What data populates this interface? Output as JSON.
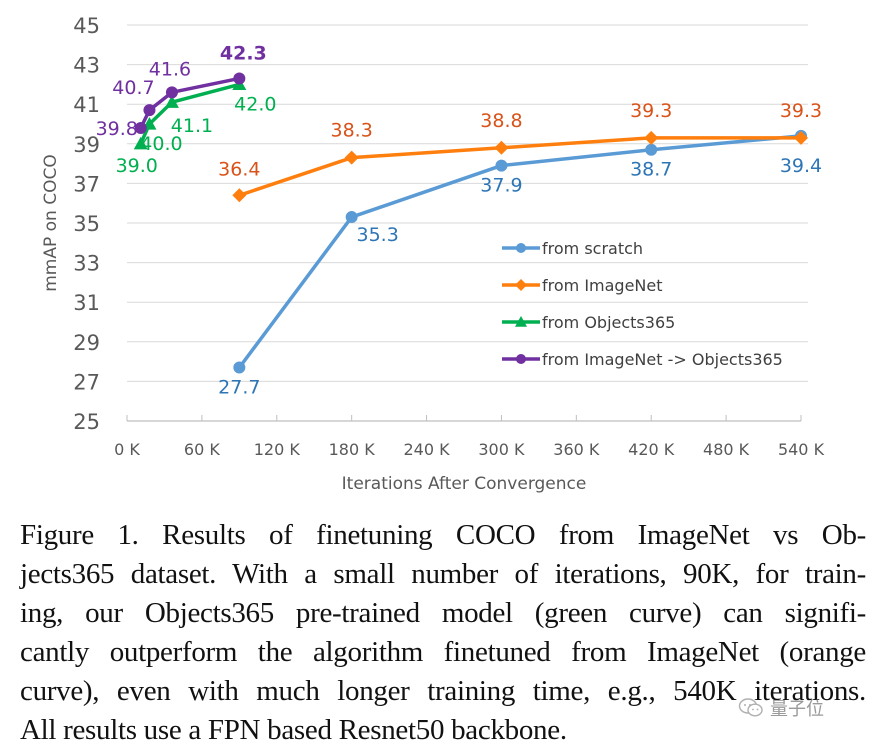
{
  "chart_data": {
    "type": "line",
    "title": "",
    "xlabel": "Iterations After Convergence",
    "ylabel": "mmAP on COCO",
    "xlim": [
      0,
      540
    ],
    "ylim": [
      25,
      45
    ],
    "x_unit": "K iterations",
    "grid": "horizontal",
    "legend_position": "center-right",
    "yticks": [
      "25",
      "27",
      "29",
      "31",
      "33",
      "35",
      "37",
      "39",
      "41",
      "43",
      "45"
    ],
    "yticks_values": [
      25,
      27,
      29,
      31,
      33,
      35,
      37,
      39,
      41,
      43,
      45
    ],
    "xticks": [
      "0 K",
      "60 K",
      "120 K",
      "180 K",
      "240 K",
      "300 K",
      "360 K",
      "420 K",
      "480 K",
      "540 K"
    ],
    "xticks_values": [
      0,
      60,
      120,
      180,
      240,
      300,
      360,
      420,
      480,
      540
    ],
    "series": [
      {
        "name": "from scratch",
        "color": "#5B9BD5",
        "label_color": "#2E75B6",
        "marker": "circle",
        "x": [
          90,
          180,
          300,
          420,
          540
        ],
        "y": [
          27.7,
          35.3,
          37.9,
          38.7,
          39.4
        ],
        "labels": [
          "27.7",
          "35.3",
          "37.9",
          "38.7",
          "39.4"
        ]
      },
      {
        "name": "from ImageNet",
        "color": "#FF7F0E",
        "label_color": "#D95319",
        "marker": "diamond",
        "x": [
          90,
          180,
          300,
          420,
          540
        ],
        "y": [
          36.4,
          38.3,
          38.8,
          39.3,
          39.3
        ],
        "labels": [
          "36.4",
          "38.3",
          "38.8",
          "39.3",
          "39.3"
        ]
      },
      {
        "name": "from Objects365",
        "color": "#00B050",
        "label_color": "#00B050",
        "marker": "triangle",
        "x": [
          11,
          18,
          36,
          90
        ],
        "y": [
          39.0,
          40.0,
          41.1,
          42.0
        ],
        "labels": [
          "39.0",
          "40.0",
          "41.1",
          "42.0"
        ]
      },
      {
        "name": "from ImageNet -> Objects365",
        "color": "#7030A0",
        "label_color": "#7030A0",
        "marker": "circle",
        "x": [
          11,
          18,
          36,
          90
        ],
        "y": [
          39.8,
          40.7,
          41.6,
          42.3
        ],
        "labels": [
          "39.8",
          "40.7",
          "41.6",
          "42.3"
        ]
      }
    ]
  },
  "caption": {
    "lines": [
      "Figure 1. Results of finetuning COCO from ImageNet vs Ob-",
      "jects365 dataset. With a small number of iterations, 90K, for train-",
      "ing, our Objects365 pre-trained model (green curve) can signifi-",
      "cantly outperform the algorithm finetuned from ImageNet (orange",
      "curve), even with much longer training time, e.g., 540K iterations.",
      "All results use a FPN based Resnet50 backbone."
    ]
  },
  "watermark": {
    "icon": "wechat-icon",
    "text": "量子位"
  }
}
